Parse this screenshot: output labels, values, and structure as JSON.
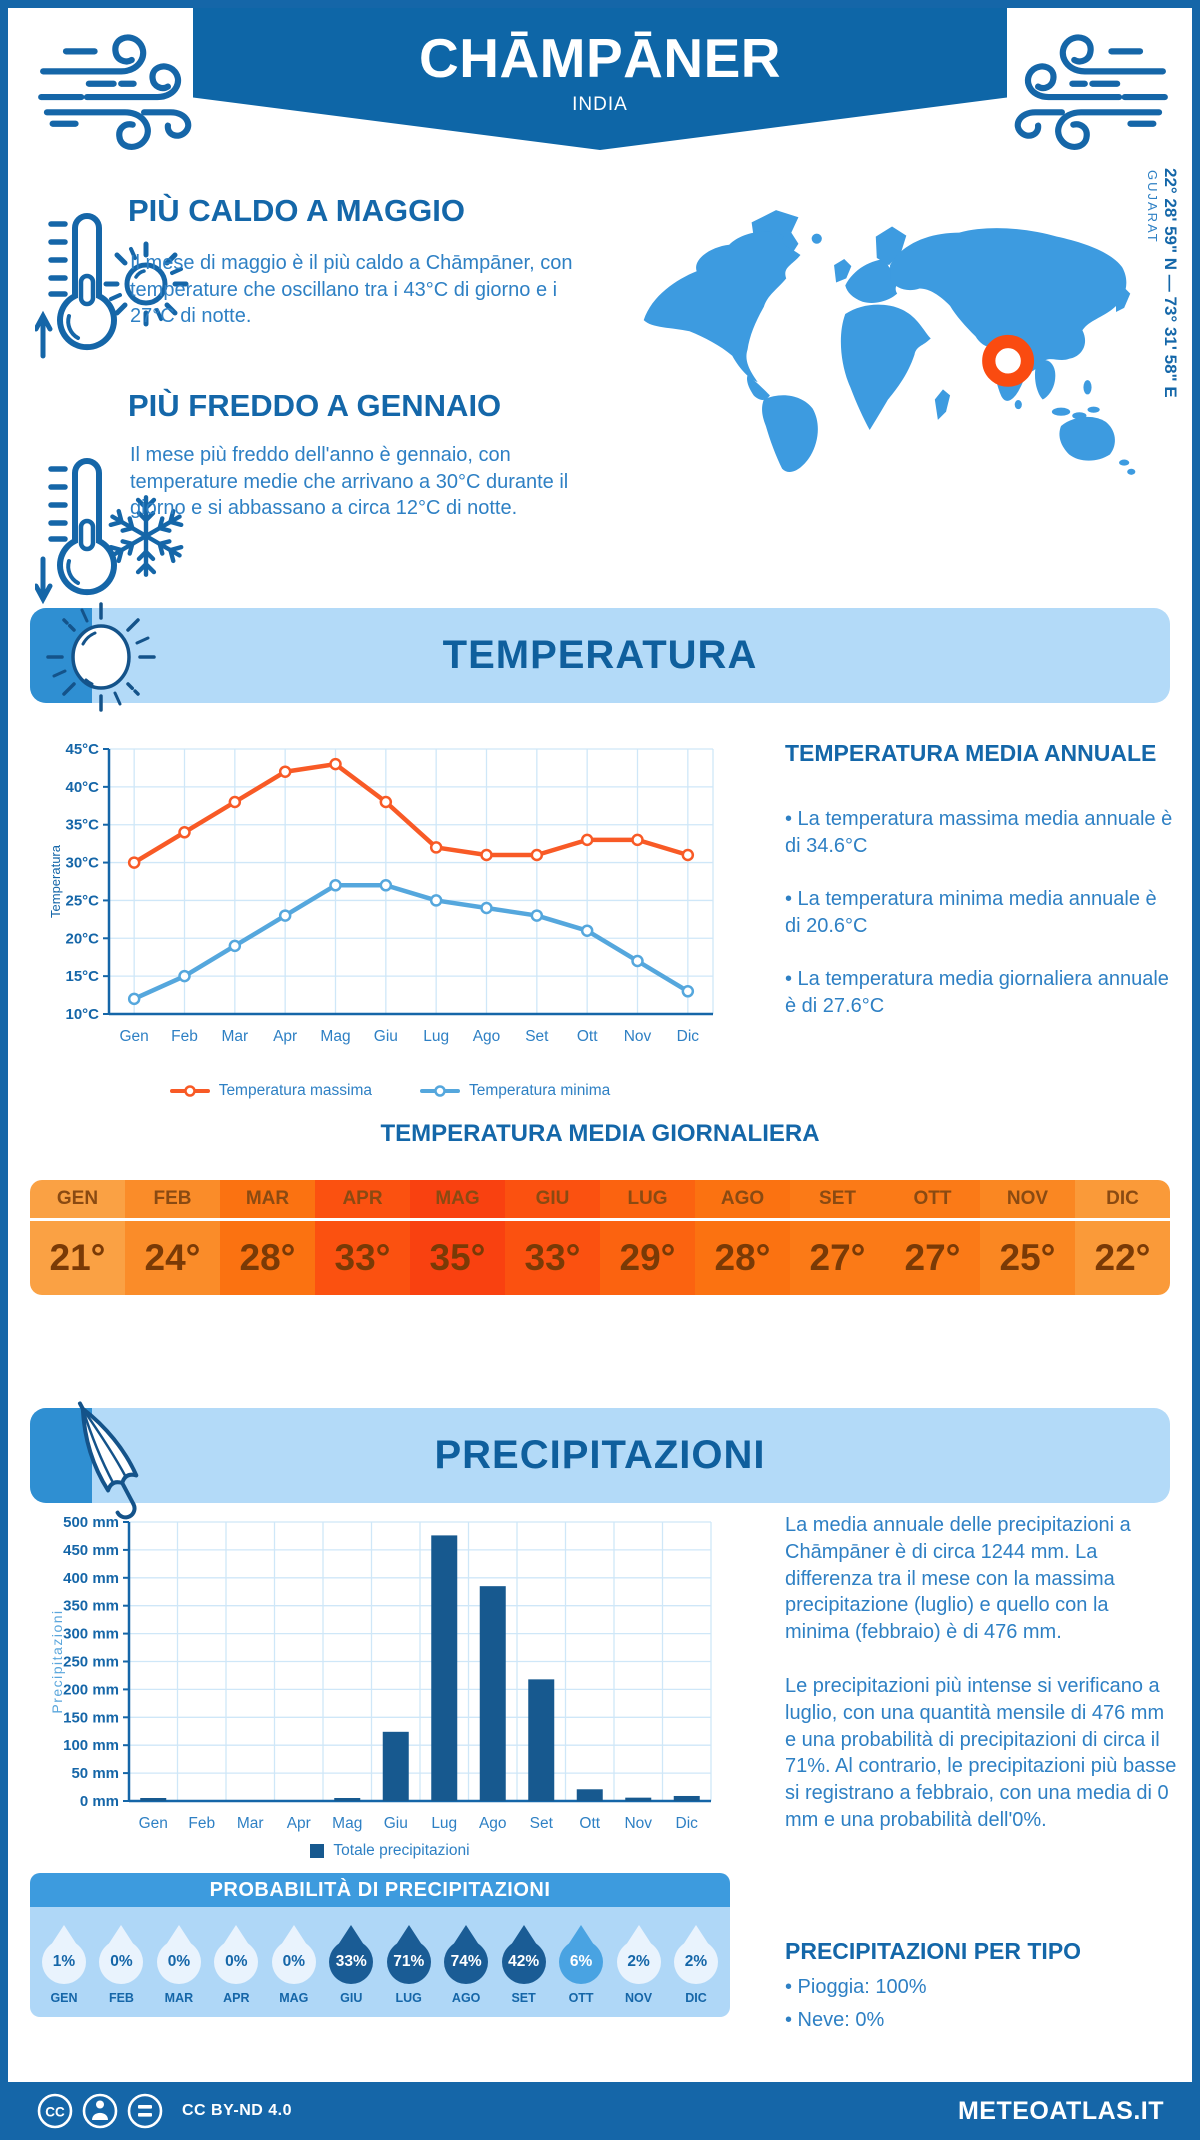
{
  "page": {
    "title": "CHĀMPĀNER",
    "subtitle": "INDIA",
    "coordinates": "22° 28' 59\" N — 73° 31' 58\" E",
    "region": "GUJARAT",
    "footer": {
      "license": "CC BY-ND 4.0",
      "site": "METEOATLAS.IT"
    }
  },
  "colors": {
    "primary_dark_blue": "#1566a8",
    "medium_blue": "#3d9be0",
    "light_blue_panel": "#b3daf8",
    "text_blue": "#2e80c4",
    "accent_orange": "#f85a26",
    "bar_blue": "#17598f",
    "marker_orange": "#fa4b10"
  },
  "highlights": {
    "hot": {
      "title": "PIÙ CALDO A MAGGIO",
      "text": "Il mese di maggio è il più caldo a Chāmpāner, con temperature che oscillano tra i 43°C di giorno e i 27°C di notte."
    },
    "cold": {
      "title": "PIÙ FREDDO A GENNAIO",
      "text": "Il mese più freddo dell'anno è gennaio, con temperature medie che arrivano a 30°C durante il giorno e si abbassano a circa 12°C di notte."
    }
  },
  "temperature_section": {
    "banner": "TEMPERATURA",
    "annual": {
      "title": "TEMPERATURA MEDIA ANNUALE",
      "bullets": [
        "• La temperatura massima media annuale è di 34.6°C",
        "• La temperatura minima media annuale è di 20.6°C",
        "• La temperatura media giornaliera annuale è di 27.6°C"
      ]
    },
    "daily_title": "TEMPERATURA MEDIA GIORNALIERA"
  },
  "precipitation_section": {
    "banner": "PRECIPITAZIONI",
    "text1": "La media annuale delle precipitazioni a Chāmpāner è di circa 1244 mm. La differenza tra il mese con la massima precipitazione (luglio) e quello con la minima (febbraio) è di 476 mm.",
    "text2": "Le precipitazioni più intense si verificano a luglio, con una quantità mensile di 476 mm e una probabilità di precipitazioni di circa il 71%. Al contrario, le precipitazioni più basse si registrano a febbraio, con una media di 0 mm e una probabilità dell'0%.",
    "per_type": {
      "title": "PRECIPITAZIONI PER TIPO",
      "bullets": [
        "• Pioggia: 100%",
        "• Neve: 0%"
      ]
    }
  },
  "chart_data": [
    {
      "type": "line",
      "title": "Temperatura media giornaliera per mese",
      "categories": [
        "Gen",
        "Feb",
        "Mar",
        "Apr",
        "Mag",
        "Giu",
        "Lug",
        "Ago",
        "Set",
        "Ott",
        "Nov",
        "Dic"
      ],
      "series": [
        {
          "name": "Temperatura massima",
          "color": "#f85a26",
          "values": [
            30,
            34,
            38,
            42,
            43,
            38,
            32,
            31,
            31,
            33,
            33,
            31
          ]
        },
        {
          "name": "Temperatura minima",
          "color": "#55a7dd",
          "values": [
            12,
            15,
            19,
            23,
            27,
            27,
            25,
            24,
            23,
            21,
            17,
            13
          ]
        }
      ],
      "xlabel": "",
      "ylabel": "Temperatura",
      "ylim": [
        10,
        45
      ],
      "ystep": 5,
      "yunit": "°C",
      "grid": true,
      "legend_position": "bottom"
    },
    {
      "type": "bar",
      "title": "Precipitazioni mensili",
      "categories": [
        "Gen",
        "Feb",
        "Mar",
        "Apr",
        "Mag",
        "Giu",
        "Lug",
        "Ago",
        "Set",
        "Ott",
        "Nov",
        "Dic"
      ],
      "series": [
        {
          "name": "Totale precipitazioni",
          "color": "#17598f",
          "values": [
            2,
            0,
            0,
            0,
            2,
            124,
            476,
            385,
            218,
            21,
            6,
            9
          ]
        }
      ],
      "xlabel": "",
      "ylabel": "Precipitazioni",
      "ylim": [
        0,
        500
      ],
      "ystep": 50,
      "yunit": " mm",
      "grid": true,
      "legend_position": "bottom"
    },
    {
      "type": "table",
      "variant": "month-strip",
      "title": "TEMPERATURA MEDIA GIORNALIERA",
      "columns": [
        {
          "label": "GEN",
          "value": "21°",
          "color": "#faa144"
        },
        {
          "label": "FEB",
          "value": "24°",
          "color": "#fa8c29"
        },
        {
          "label": "MAR",
          "value": "28°",
          "color": "#fb7211"
        },
        {
          "label": "APR",
          "value": "33°",
          "color": "#fb5110"
        },
        {
          "label": "MAG",
          "value": "35°",
          "color": "#f94110"
        },
        {
          "label": "GIU",
          "value": "33°",
          "color": "#fb5110"
        },
        {
          "label": "LUG",
          "value": "29°",
          "color": "#fb6310"
        },
        {
          "label": "AGO",
          "value": "28°",
          "color": "#fb7211"
        },
        {
          "label": "SET",
          "value": "27°",
          "color": "#fb7a17"
        },
        {
          "label": "OTT",
          "value": "27°",
          "color": "#fb7a17"
        },
        {
          "label": "NOV",
          "value": "25°",
          "color": "#fa8722"
        },
        {
          "label": "DIC",
          "value": "22°",
          "color": "#fa9a39"
        }
      ]
    },
    {
      "type": "table",
      "variant": "droplets",
      "title": "PROBABILITÀ DI PRECIPITAZIONI",
      "categories": [
        "GEN",
        "FEB",
        "MAR",
        "APR",
        "MAG",
        "GIU",
        "LUG",
        "AGO",
        "SET",
        "OTT",
        "NOV",
        "DIC"
      ],
      "values": [
        1,
        0,
        0,
        0,
        0,
        33,
        71,
        74,
        42,
        6,
        2,
        2
      ],
      "labels": [
        "1%",
        "0%",
        "0%",
        "0%",
        "0%",
        "33%",
        "71%",
        "74%",
        "42%",
        "6%",
        "2%",
        "2%"
      ],
      "drop_colors": [
        "#e9f3fd",
        "#e9f3fd",
        "#e9f3fd",
        "#e9f3fd",
        "#e9f3fd",
        "#1a5c95",
        "#1a5c95",
        "#1a5c95",
        "#1a5c95",
        "#49a3e2",
        "#e9f3fd",
        "#e9f3fd"
      ],
      "text_colors": [
        "#1566a8",
        "#1566a8",
        "#1566a8",
        "#1566a8",
        "#1566a8",
        "#ffffff",
        "#ffffff",
        "#ffffff",
        "#ffffff",
        "#ffffff",
        "#1566a8",
        "#1566a8"
      ]
    }
  ]
}
